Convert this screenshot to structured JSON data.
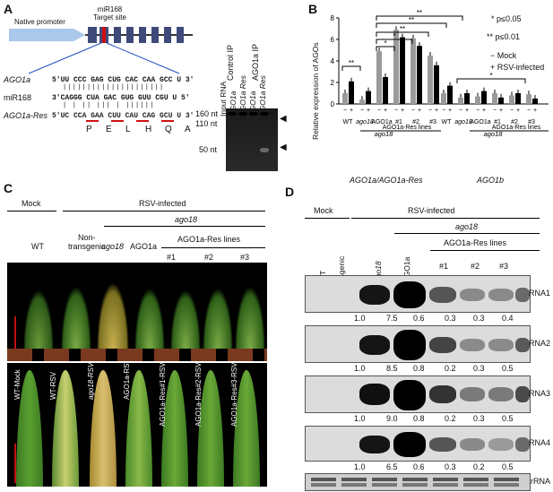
{
  "panels": {
    "A": "A",
    "B": "B",
    "C": "C",
    "D": "D"
  },
  "panelA": {
    "native_promoter": "Native promoter",
    "mir168_target_site": "miR168\nTarget site",
    "seq_rows": [
      {
        "name": "AGO1a",
        "seq": "5′UU CCC GAG CUG CAC CAA GCC U 3′"
      },
      {
        "name": "miR168",
        "seq": "3′CAGGG CUA GAC GUG GUU CGU U 5′"
      },
      {
        "name": "AGO1a-Res",
        "seq": "5′UC CCA GAA CUU CAU CAG GCU U 3′"
      }
    ],
    "aa": [
      "P",
      "E",
      "L",
      "H",
      "Q",
      "A"
    ],
    "lane_headers": [
      "Input RNA",
      "AGO1a",
      "AGO1a Res",
      "AGO1a",
      "AGO1a Res"
    ],
    "group_headers": [
      "Control IP",
      "AGO1a IP"
    ],
    "size_markers": [
      "160 nt",
      "110 nt",
      "50 nt"
    ]
  },
  "panelB": {
    "ylabel": "Relative expression of AGOs",
    "legend": [
      "* p≤0.05",
      "** p≤0.01",
      "− Mock",
      "+ RSV-infected"
    ],
    "sign_labels": [
      "−",
      "+"
    ],
    "group_labels": [
      "WT",
      "ago18",
      "AGO1a",
      "#1",
      "#2",
      "#3"
    ],
    "bracket_labels": [
      "ago18",
      "AGO1a-Res lines",
      "ago18",
      "AGO1a-Res lines"
    ],
    "bottom_labels": [
      "AGO1a/AGO1a-Res",
      "AGO1b"
    ],
    "star_labels": [
      "**",
      "*",
      "*",
      "**",
      "**",
      "**",
      "*"
    ],
    "chart_data": {
      "type": "bar",
      "ylim": [
        0,
        8
      ],
      "yticks": [
        0,
        2,
        4,
        6,
        8
      ],
      "categories": [
        "WT",
        "ago18",
        "AGO1a",
        "#1",
        "#2",
        "#3"
      ],
      "series": [
        {
          "name": "AGO1a/AGO1a-Res Mock",
          "values": [
            1.0,
            0.4,
            4.9,
            6.9,
            6.1,
            4.5
          ]
        },
        {
          "name": "AGO1a/AGO1a-Res RSV",
          "values": [
            2.1,
            1.2,
            2.5,
            6.2,
            5.4,
            3.6
          ]
        },
        {
          "name": "AGO1b Mock",
          "values": [
            1.0,
            0.6,
            0.7,
            1.0,
            0.8,
            0.9
          ]
        },
        {
          "name": "AGO1b RSV",
          "values": [
            1.7,
            1.0,
            1.2,
            0.6,
            1.0,
            0.5
          ]
        }
      ]
    }
  },
  "panelC": {
    "mock": "Mock",
    "rsv": "RSV-infected",
    "ago18": "ago18",
    "wt": "WT",
    "nontransgenic": "Non-\ntransgenic",
    "ago18b": "ago18",
    "ago1a": "AGO1a",
    "res_lines": "AGO1a-Res lines",
    "lines": [
      "#1",
      "#2",
      "#3"
    ],
    "leaf_labels": [
      "WT-Mock",
      "WT-RSV",
      "ago18-RSV",
      "AGO1a-RSV",
      "AGO1a-Res#1-RSV",
      "AGO1a-Res#2-RSV",
      "AGO1a-Res#3-RSV"
    ]
  },
  "panelD": {
    "mock": "Mock",
    "rsv": "RSV-infected",
    "ago18": "ago18",
    "res_lines": "AGO1a-Res lines",
    "lanes": [
      "WT",
      "Non-\ntransgenic",
      "ago18",
      "AGO1a",
      "#1",
      "#2",
      "#3"
    ],
    "blots": [
      {
        "name": "RNA1",
        "values": [
          "1.0",
          "7.5",
          "0.6",
          "0.3",
          "0.3",
          "0.4"
        ]
      },
      {
        "name": "RNA2",
        "values": [
          "1.0",
          "8.5",
          "0.8",
          "0.2",
          "0.3",
          "0.5"
        ]
      },
      {
        "name": "RNA3",
        "values": [
          "1.0",
          "9.0",
          "0.8",
          "0.2",
          "0.3",
          "0.5"
        ]
      },
      {
        "name": "RNA4",
        "values": [
          "1.0",
          "6.5",
          "0.6",
          "0.3",
          "0.2",
          "0.5"
        ]
      }
    ],
    "rrna": "rRNA"
  }
}
